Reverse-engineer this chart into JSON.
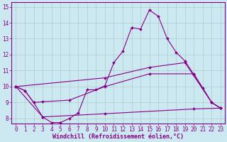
{
  "xlabel": "Windchill (Refroidissement éolien,°C)",
  "bg_color": "#cce8f0",
  "line_color": "#880088",
  "xlim": [
    -0.5,
    23.5
  ],
  "ylim": [
    7.7,
    15.3
  ],
  "xticks": [
    0,
    1,
    2,
    3,
    4,
    5,
    6,
    7,
    8,
    9,
    10,
    11,
    12,
    13,
    14,
    15,
    16,
    17,
    18,
    19,
    20,
    21,
    22,
    23
  ],
  "yticks": [
    8,
    9,
    10,
    11,
    12,
    13,
    14,
    15
  ],
  "lines": [
    {
      "x": [
        0,
        1,
        2,
        3,
        4,
        5,
        6,
        7,
        8,
        9,
        10,
        11,
        12,
        13,
        14,
        15,
        16,
        17,
        18,
        19,
        20,
        21,
        22,
        23
      ],
      "y": [
        10.0,
        9.75,
        9.0,
        8.1,
        7.75,
        7.75,
        8.0,
        8.35,
        9.8,
        9.8,
        10.05,
        11.5,
        12.2,
        13.7,
        13.6,
        14.8,
        14.4,
        13.0,
        12.15,
        11.6,
        10.75,
        9.9,
        9.0,
        8.65
      ]
    },
    {
      "x": [
        0,
        10,
        15,
        19,
        22,
        23
      ],
      "y": [
        10.0,
        10.55,
        11.2,
        11.5,
        9.0,
        8.65
      ]
    },
    {
      "x": [
        0,
        1,
        2,
        3,
        6,
        10,
        15,
        20,
        22,
        23
      ],
      "y": [
        10.0,
        9.75,
        9.0,
        9.05,
        9.15,
        10.0,
        10.8,
        10.8,
        9.0,
        8.65
      ]
    },
    {
      "x": [
        0,
        3,
        10,
        20,
        23
      ],
      "y": [
        10.0,
        8.1,
        8.3,
        8.6,
        8.65
      ]
    }
  ],
  "tick_fontsize": 5.5,
  "label_fontsize": 6.0,
  "grid_color": "#aacccc",
  "marker": "D",
  "marker_size": 2.0,
  "linewidth": 0.8
}
